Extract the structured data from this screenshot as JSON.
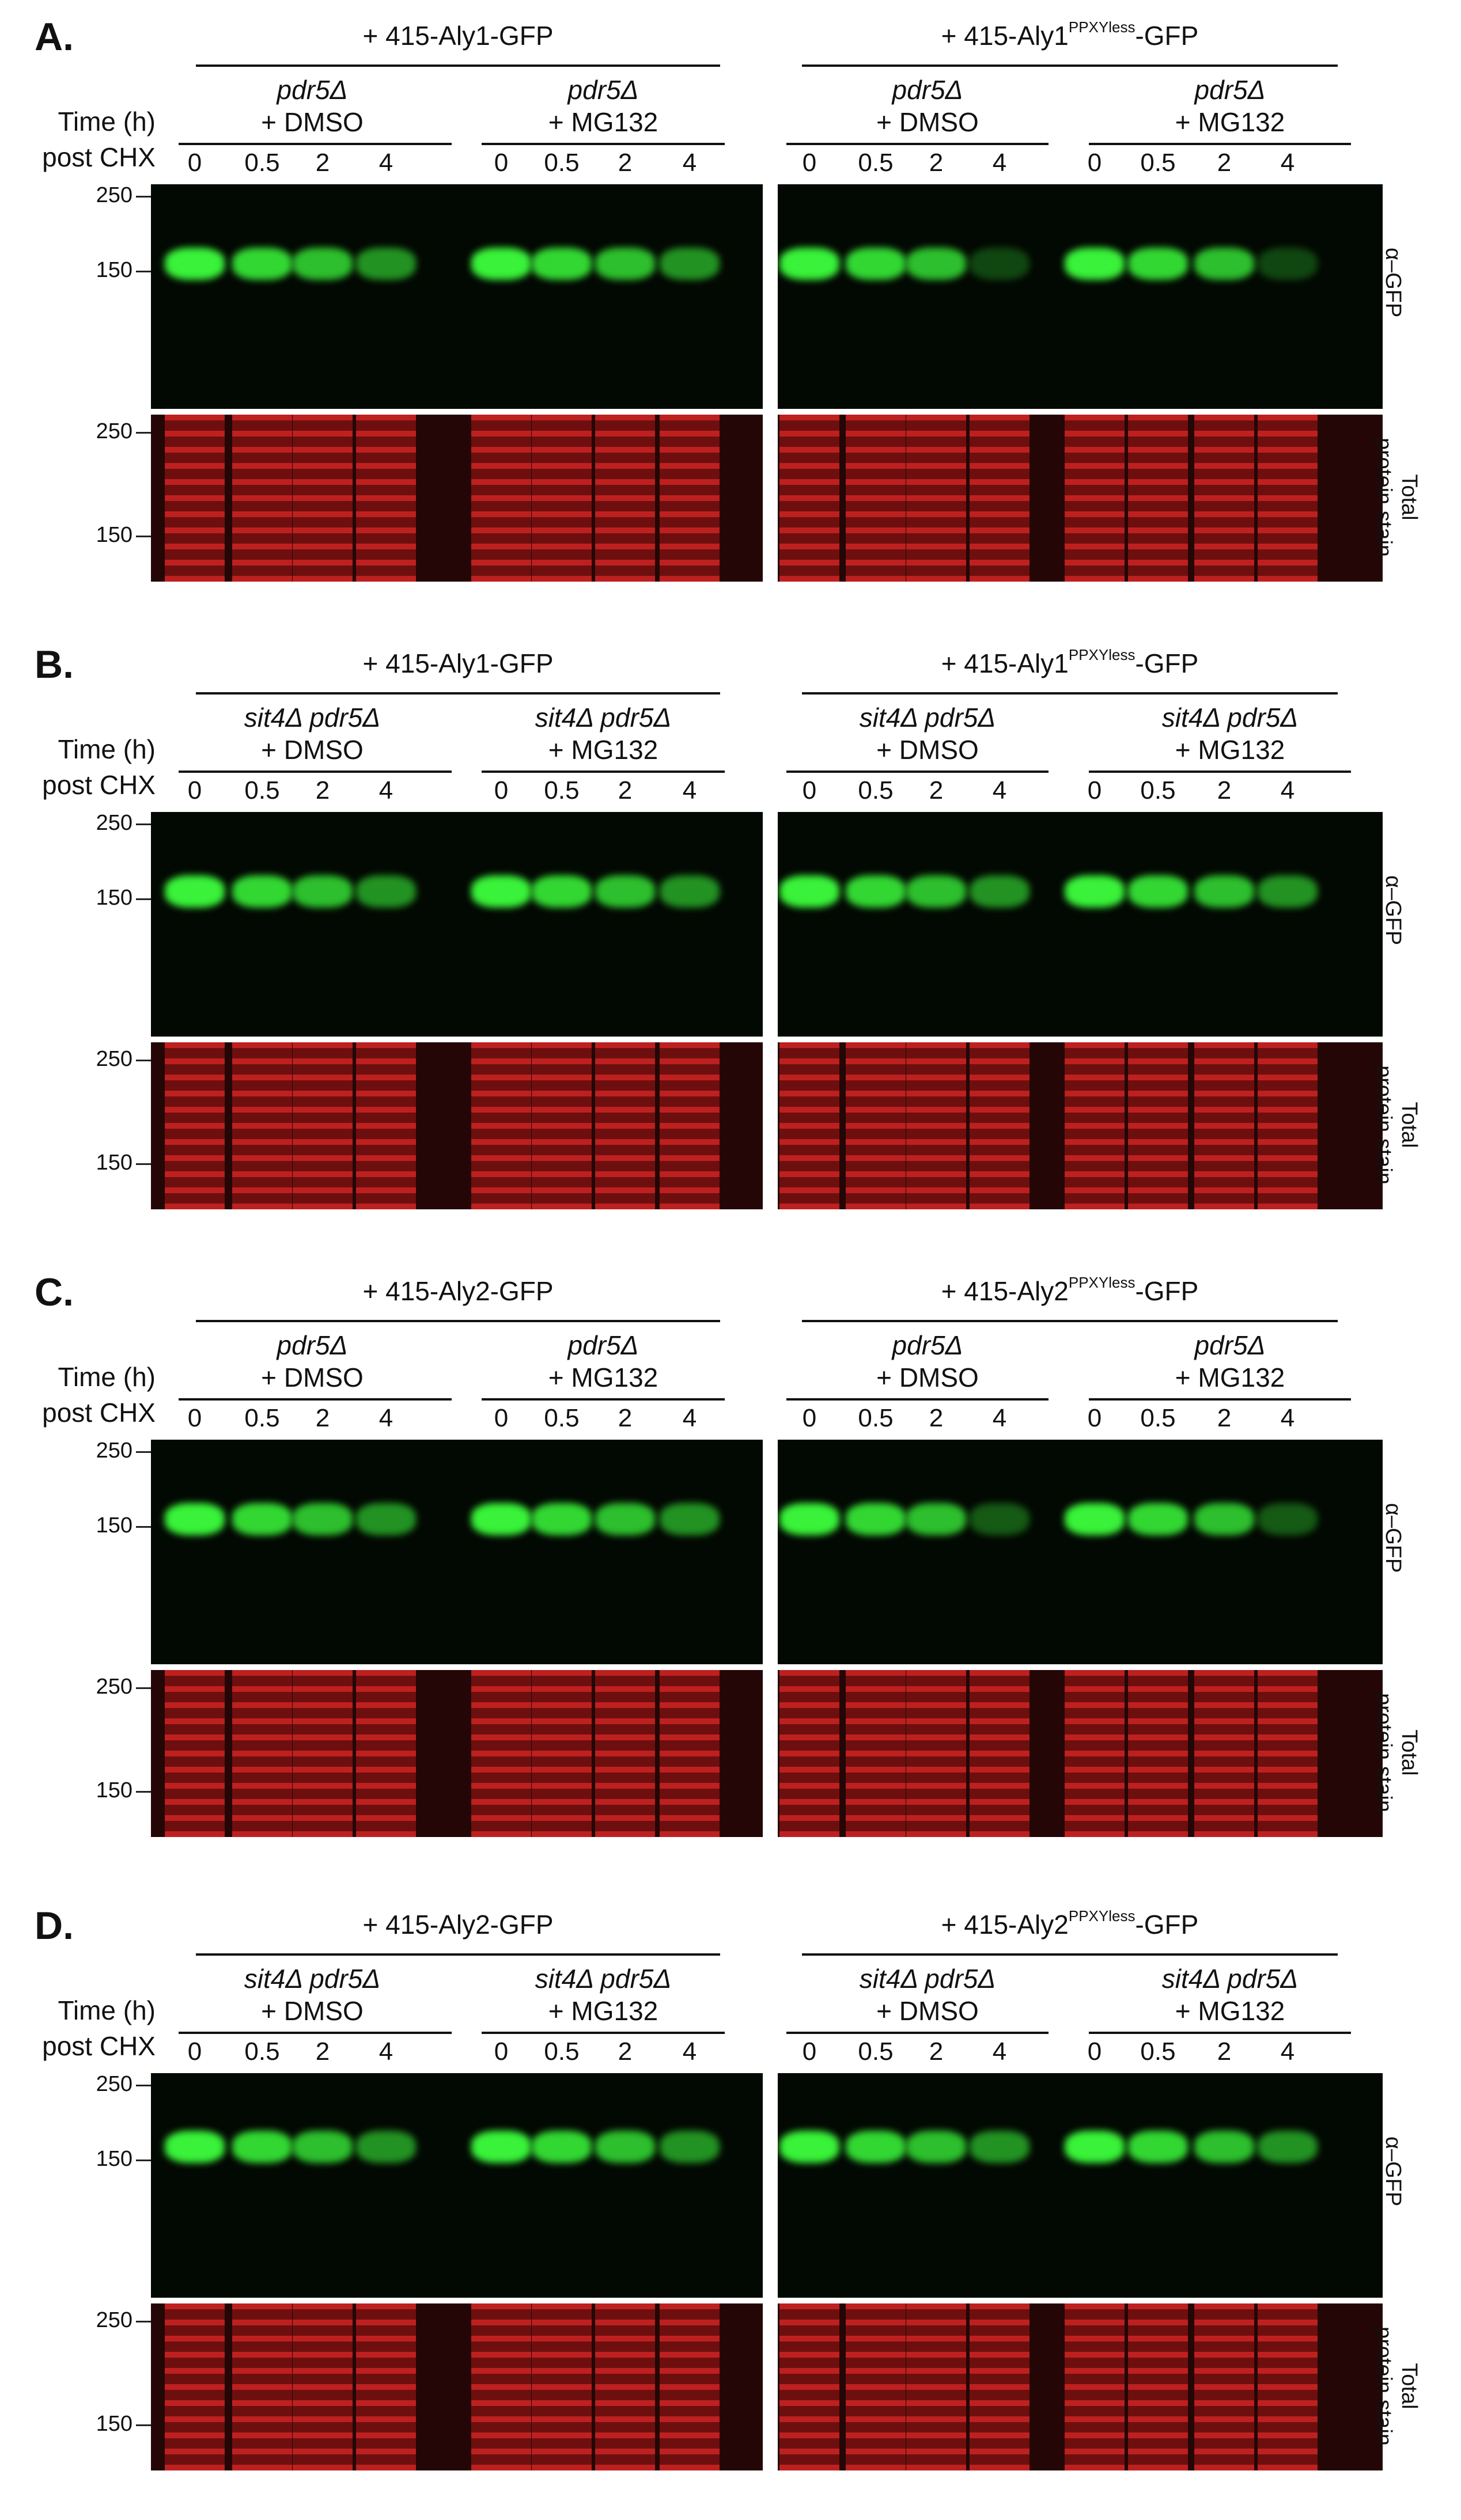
{
  "panels": [
    {
      "letter": "A.",
      "left": {
        "construct": "+ 415-Aly1-GFP",
        "sup": "",
        "suffix": "",
        "conditions": [
          {
            "genotype": "pdr5Δ",
            "treatment": "+ DMSO"
          },
          {
            "genotype": "pdr5Δ",
            "treatment": "+ MG132"
          }
        ]
      },
      "right": {
        "construct": "+ 415-Aly1",
        "sup": "PPXYless",
        "suffix": "-GFP",
        "conditions": [
          {
            "genotype": "pdr5Δ",
            "treatment": "+ DMSO"
          },
          {
            "genotype": "pdr5Δ",
            "treatment": "+ MG132"
          }
        ]
      }
    },
    {
      "letter": "B.",
      "left": {
        "construct": "+ 415-Aly1-GFP",
        "sup": "",
        "suffix": "",
        "conditions": [
          {
            "genotype": "sit4Δ pdr5Δ",
            "treatment": "+ DMSO"
          },
          {
            "genotype": "sit4Δ pdr5Δ",
            "treatment": "+ MG132"
          }
        ]
      },
      "right": {
        "construct": "+ 415-Aly1",
        "sup": "PPXYless",
        "suffix": "-GFP",
        "conditions": [
          {
            "genotype": "sit4Δ pdr5Δ",
            "treatment": "+ DMSO"
          },
          {
            "genotype": "sit4Δ pdr5Δ",
            "treatment": "+ MG132"
          }
        ]
      }
    },
    {
      "letter": "C.",
      "left": {
        "construct": "+ 415-Aly2-GFP",
        "sup": "",
        "suffix": "",
        "conditions": [
          {
            "genotype": "pdr5Δ",
            "treatment": "+ DMSO"
          },
          {
            "genotype": "pdr5Δ",
            "treatment": "+ MG132"
          }
        ]
      },
      "right": {
        "construct": "+ 415-Aly2",
        "sup": "PPXYless",
        "suffix": "-GFP",
        "conditions": [
          {
            "genotype": "pdr5Δ",
            "treatment": "+ DMSO"
          },
          {
            "genotype": "pdr5Δ",
            "treatment": "+ MG132"
          }
        ]
      }
    },
    {
      "letter": "D.",
      "left": {
        "construct": "+ 415-Aly2-GFP",
        "sup": "",
        "suffix": "",
        "conditions": [
          {
            "genotype": "sit4Δ pdr5Δ",
            "treatment": "+ DMSO"
          },
          {
            "genotype": "sit4Δ pdr5Δ",
            "treatment": "+ MG132"
          }
        ]
      },
      "right": {
        "construct": "+ 415-Aly2",
        "sup": "PPXYless",
        "suffix": "-GFP",
        "conditions": [
          {
            "genotype": "sit4Δ pdr5Δ",
            "treatment": "+ DMSO"
          },
          {
            "genotype": "sit4Δ pdr5Δ",
            "treatment": "+ MG132"
          }
        ]
      }
    }
  ],
  "time_label_line1": "Time (h)",
  "time_label_line2": "post CHX",
  "timepoints": [
    "0",
    "0.5",
    "2",
    "4"
  ],
  "mw_markers": [
    "250",
    "150"
  ],
  "blot_labels": {
    "gfp": "α–GFP",
    "stain_line1": "Total",
    "stain_line2": "protein stain"
  },
  "colors": {
    "gfp_band": "#3cff3c",
    "stain": "#d92424",
    "gfp_bg": "#020802",
    "stain_bg": "#240606"
  }
}
